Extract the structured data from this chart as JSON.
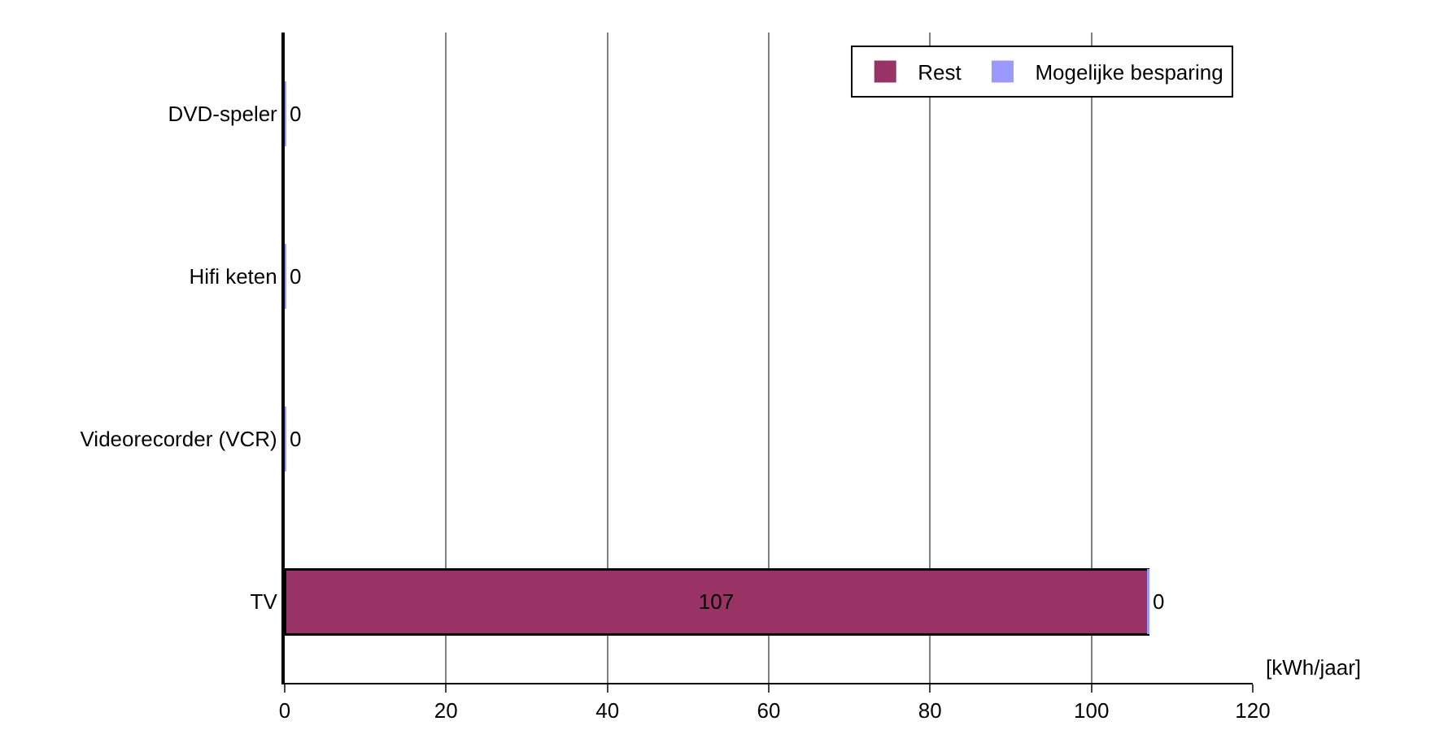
{
  "chart_data": {
    "type": "bar",
    "orientation": "horizontal",
    "stacked": true,
    "categories": [
      "DVD-speler",
      "Hifi keten",
      "Videorecorder (VCR)",
      "TV"
    ],
    "series": [
      {
        "name": "Rest",
        "color": "#993366",
        "values": [
          0,
          0,
          0,
          107
        ],
        "value_labels": [
          null,
          null,
          null,
          "107"
        ]
      },
      {
        "name": "Mogelijke besparing",
        "color": "#9999ff",
        "values": [
          0,
          0,
          0,
          0
        ],
        "value_labels": [
          "0",
          "0",
          "0",
          "0"
        ]
      }
    ],
    "xlabel": "[kWh/jaar]",
    "xlim": [
      0,
      120
    ],
    "xticks": [
      0,
      20,
      40,
      60,
      80,
      100,
      120
    ],
    "grid": "x",
    "legend": "top right"
  }
}
